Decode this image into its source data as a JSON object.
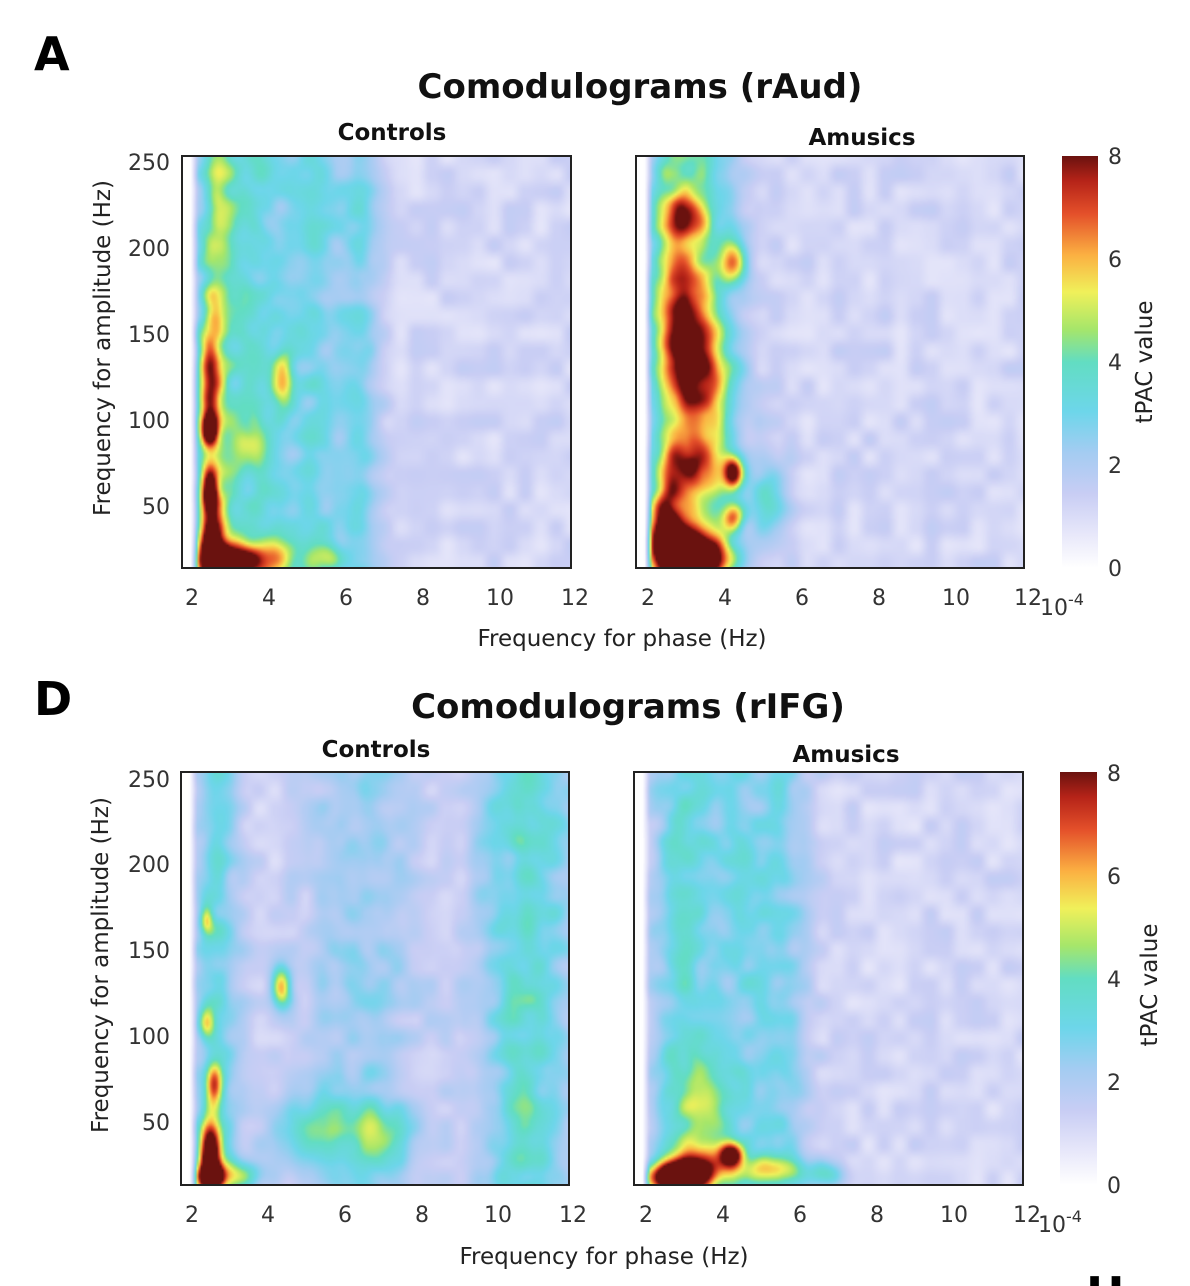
{
  "chart_data": [
    {
      "type": "heatmap",
      "panel": "A",
      "title": "Comodulograms (rAud)",
      "xlabel": "Frequency for phase (Hz)",
      "ylabel": "Frequency for amplitude (Hz)",
      "xlim": [
        2,
        12
      ],
      "ylim": [
        10,
        250
      ],
      "xticks": [
        "2",
        "4",
        "6",
        "8",
        "10",
        "12"
      ],
      "yticks": [
        "50",
        "100",
        "150",
        "200",
        "250"
      ],
      "colorbar": {
        "label": "tPAC value",
        "range": [
          0,
          8
        ],
        "ticks": [
          "0",
          "2",
          "4",
          "6",
          "8"
        ],
        "scale_base": "10",
        "scale_exp": "-4"
      },
      "subplots": [
        {
          "title": "Controls",
          "blobs": [
            {
              "fx": 2.9,
              "fa": 12,
              "sx": 0.45,
              "sa": 7,
              "v": 7.8
            },
            {
              "fx": 2.5,
              "fa": 22,
              "sx": 0.22,
              "sa": 14,
              "v": 6.5
            },
            {
              "fx": 2.45,
              "fa": 55,
              "sx": 0.16,
              "sa": 9,
              "v": 6.0
            },
            {
              "fx": 2.45,
              "fa": 90,
              "sx": 0.15,
              "sa": 6,
              "v": 5.0
            },
            {
              "fx": 2.45,
              "fa": 120,
              "sx": 0.2,
              "sa": 25,
              "v": 3.8
            },
            {
              "fx": 3.9,
              "fa": 15,
              "sx": 0.6,
              "sa": 8,
              "v": 3.8
            },
            {
              "fx": 5.6,
              "fa": 15,
              "sx": 0.3,
              "sa": 6,
              "v": 2.4
            },
            {
              "fx": 4.4,
              "fa": 120,
              "sx": 0.2,
              "sa": 12,
              "v": 3.0
            },
            {
              "fx": 3.5,
              "fa": 80,
              "sx": 0.3,
              "sa": 10,
              "v": 2.4
            }
          ],
          "columns": [
            {
              "fx": 2.6,
              "sx": 0.35,
              "v": 2.6
            },
            {
              "fx": 3.6,
              "sx": 0.7,
              "v": 2.1
            },
            {
              "fx": 5.3,
              "sx": 0.6,
              "v": 1.7
            },
            {
              "fx": 6.5,
              "sx": 0.35,
              "v": 1.4
            }
          ]
        },
        {
          "title": "Amusics",
          "blobs": [
            {
              "fx": 2.9,
              "fa": 18,
              "sx": 0.55,
              "sa": 11,
              "v": 8.5
            },
            {
              "fx": 2.5,
              "fa": 35,
              "sx": 0.3,
              "sa": 15,
              "v": 5.0
            },
            {
              "fx": 4.3,
              "fa": 65,
              "sx": 0.18,
              "sa": 6,
              "v": 6.5
            },
            {
              "fx": 4.3,
              "fa": 40,
              "sx": 0.2,
              "sa": 6,
              "v": 4.5
            },
            {
              "fx": 3.7,
              "fa": 15,
              "sx": 0.5,
              "sa": 8,
              "v": 4.5
            },
            {
              "fx": 3.3,
              "fa": 70,
              "sx": 0.6,
              "sa": 12,
              "v": 4.0
            },
            {
              "fx": 4.3,
              "fa": 188,
              "sx": 0.25,
              "sa": 8,
              "v": 4.3
            },
            {
              "fx": 3.0,
              "fa": 160,
              "sx": 0.5,
              "sa": 25,
              "v": 3.8
            },
            {
              "fx": 3.4,
              "fa": 120,
              "sx": 0.6,
              "sa": 20,
              "v": 3.6
            },
            {
              "fx": 3.0,
              "fa": 215,
              "sx": 0.4,
              "sa": 10,
              "v": 3.4
            },
            {
              "fx": 5.3,
              "fa": 50,
              "sx": 0.35,
              "sa": 15,
              "v": 2.5
            }
          ],
          "columns": [
            {
              "fx": 3.4,
              "sx": 0.75,
              "v": 2.6
            },
            {
              "fx": 2.6,
              "sx": 0.4,
              "v": 1.6
            }
          ]
        }
      ]
    },
    {
      "type": "heatmap",
      "panel": "D",
      "title": "Comodulograms (rIFG)",
      "xlabel": "Frequency for phase (Hz)",
      "ylabel": "Frequency for amplitude (Hz)",
      "xlim": [
        2,
        12
      ],
      "ylim": [
        10,
        250
      ],
      "xticks": [
        "2",
        "4",
        "6",
        "8",
        "10",
        "12"
      ],
      "yticks": [
        "50",
        "100",
        "150",
        "200",
        "250"
      ],
      "colorbar": {
        "label": "tPAC value",
        "range": [
          0,
          8
        ],
        "ticks": [
          "0",
          "2",
          "4",
          "6",
          "8"
        ],
        "scale_base": "10",
        "scale_exp": "-4"
      },
      "subplots": [
        {
          "title": "Controls",
          "blobs": [
            {
              "fx": 2.5,
              "fa": 28,
              "sx": 0.2,
              "sa": 13,
              "v": 7.8
            },
            {
              "fx": 2.5,
              "fa": 14,
              "sx": 0.25,
              "sa": 5,
              "v": 7.0
            },
            {
              "fx": 2.6,
              "fa": 68,
              "sx": 0.15,
              "sa": 9,
              "v": 4.0
            },
            {
              "fx": 4.4,
              "fa": 125,
              "sx": 0.18,
              "sa": 8,
              "v": 4.6
            },
            {
              "fx": 2.4,
              "fa": 105,
              "sx": 0.15,
              "sa": 6,
              "v": 3.2
            },
            {
              "fx": 2.4,
              "fa": 165,
              "sx": 0.12,
              "sa": 6,
              "v": 3.0
            },
            {
              "fx": 3.3,
              "fa": 15,
              "sx": 0.45,
              "sa": 6,
              "v": 3.0
            },
            {
              "fx": 5.2,
              "fa": 40,
              "sx": 0.8,
              "sa": 15,
              "v": 2.4
            },
            {
              "fx": 7.0,
              "fa": 40,
              "sx": 0.6,
              "sa": 12,
              "v": 2.2
            }
          ],
          "columns": [
            {
              "fx": 10.9,
              "sx": 0.9,
              "v": 2.4
            },
            {
              "fx": 2.7,
              "sx": 0.45,
              "v": 1.9
            },
            {
              "fx": 6.5,
              "sx": 1.1,
              "v": 1.3
            }
          ]
        },
        {
          "title": "Amusics",
          "blobs": [
            {
              "fx": 2.85,
              "fa": 14,
              "sx": 0.55,
              "sa": 6,
              "v": 8.6
            },
            {
              "fx": 4.3,
              "fa": 27,
              "sx": 0.22,
              "sa": 5,
              "v": 6.0
            },
            {
              "fx": 3.5,
              "fa": 21,
              "sx": 0.55,
              "sa": 8,
              "v": 4.2
            },
            {
              "fx": 5.4,
              "fa": 18,
              "sx": 0.6,
              "sa": 6,
              "v": 3.0
            },
            {
              "fx": 6.8,
              "fa": 15,
              "sx": 0.35,
              "sa": 5,
              "v": 2.4
            },
            {
              "fx": 3.5,
              "fa": 60,
              "sx": 0.5,
              "sa": 20,
              "v": 2.0
            }
          ],
          "columns": [
            {
              "fx": 3.0,
              "sx": 0.6,
              "v": 2.1
            },
            {
              "fx": 4.5,
              "sx": 0.6,
              "v": 1.6
            },
            {
              "fx": 5.7,
              "sx": 0.5,
              "v": 1.4
            }
          ]
        }
      ]
    }
  ],
  "extra_labels": {
    "corner_letter": "H"
  }
}
